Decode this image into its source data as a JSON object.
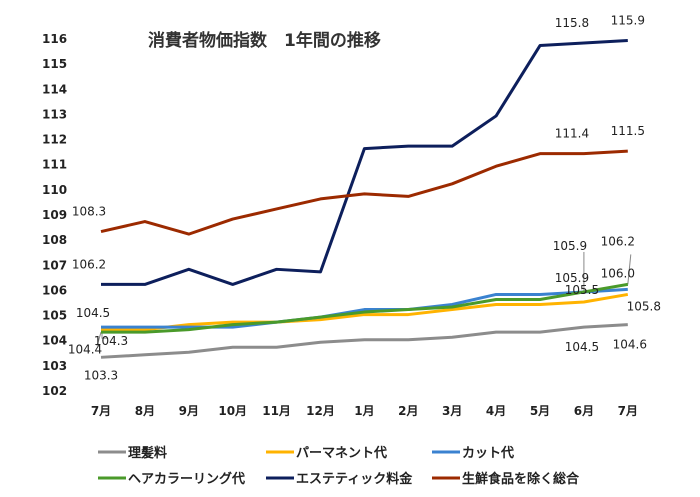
{
  "chart_data": {
    "type": "line",
    "title": "消費者物価指数　1年間の推移",
    "xlabel": "",
    "ylabel": "",
    "categories": [
      "7月",
      "8月",
      "9月",
      "10月",
      "11月",
      "12月",
      "1月",
      "2月",
      "3月",
      "4月",
      "5月",
      "6月",
      "7月"
    ],
    "ylim": [
      102,
      116
    ],
    "yticks": [
      102,
      103,
      104,
      105,
      106,
      107,
      108,
      109,
      110,
      111,
      112,
      113,
      114,
      115,
      116
    ],
    "grid": false,
    "legend_position": "bottom",
    "series": [
      {
        "name": "理髪料",
        "color": "#8c8c8c",
        "values": [
          103.3,
          103.4,
          103.5,
          103.7,
          103.7,
          103.9,
          104.0,
          104.0,
          104.1,
          104.3,
          104.3,
          104.5,
          104.6
        ],
        "labels": {
          "0": "103.3",
          "11": "104.5",
          "12": "104.6"
        }
      },
      {
        "name": "パーマネント代",
        "color": "#ffb300",
        "values": [
          104.4,
          104.4,
          104.6,
          104.7,
          104.7,
          104.8,
          105.0,
          105.0,
          105.2,
          105.4,
          105.4,
          105.5,
          105.8
        ],
        "labels": {
          "0": "104.4",
          "11": "105.5",
          "12": "105.8"
        }
      },
      {
        "name": "カット代",
        "color": "#3a82d0",
        "values": [
          104.5,
          104.5,
          104.5,
          104.5,
          104.7,
          104.9,
          105.2,
          105.2,
          105.4,
          105.8,
          105.8,
          105.9,
          106.0
        ],
        "labels": {
          "0": "104.5",
          "11": "105.9",
          "12": "106.0"
        }
      },
      {
        "name": "ヘアカラーリング代",
        "color": "#4a9a2a",
        "values": [
          104.3,
          104.3,
          104.4,
          104.6,
          104.7,
          104.9,
          105.1,
          105.2,
          105.3,
          105.6,
          105.6,
          105.9,
          106.2
        ],
        "labels": {
          "0": "104.3",
          "11": "105.9",
          "12": "106.2"
        }
      },
      {
        "name": "エステティック料金",
        "color": "#0d1f5c",
        "values": [
          106.2,
          106.2,
          106.8,
          106.2,
          106.8,
          106.7,
          111.6,
          111.7,
          111.7,
          112.9,
          115.7,
          115.8,
          115.9
        ],
        "labels": {
          "0": "106.2",
          "11": "115.8",
          "12": "115.9"
        }
      },
      {
        "name": "生鮮食品を除く総合",
        "color": "#9c2a00",
        "values": [
          108.3,
          108.7,
          108.2,
          108.8,
          109.2,
          109.6,
          109.8,
          109.7,
          110.2,
          110.9,
          111.4,
          111.4,
          111.5
        ],
        "labels": {
          "0": "108.3",
          "11": "111.4",
          "12": "111.5"
        }
      }
    ]
  }
}
